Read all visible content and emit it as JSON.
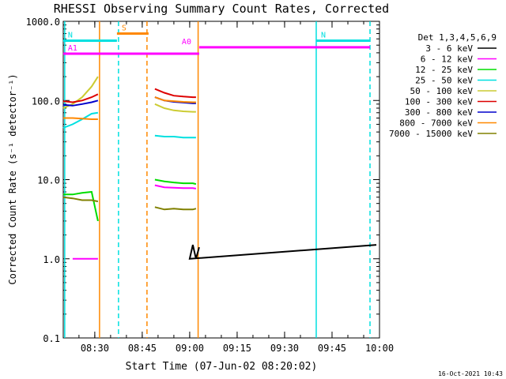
{
  "chart_data": {
    "type": "line",
    "title": "RHESSI Observing Summary Count Rates, Corrected",
    "xlabel": "Start Time (07-Jun-02 08:20:02)",
    "ylabel": "Corrected Count Rate (s⁻¹ detector⁻¹)",
    "yscale": "log",
    "ylim": [
      0.1,
      1000
    ],
    "xlim": [
      "08:20:02",
      "10:00:00"
    ],
    "x_tick_labels": [
      "08:30",
      "08:45",
      "09:00",
      "09:15",
      "09:30",
      "09:45",
      "10:00"
    ],
    "y_tick_labels": [
      "0.1",
      "1.0",
      "10.0",
      "100.0",
      "1000.0"
    ],
    "legend": {
      "title": "Det 1,3,4,5,6,9",
      "placement": "right"
    },
    "series": [
      {
        "name": "3 - 6 keV",
        "color": "#000000",
        "segments": [
          {
            "x": [
              "09:59",
              "09:00",
              "09:01",
              "09:02",
              "09:03"
            ],
            "y": [
              1.5,
              1.0,
              1.5,
              1.0,
              1.4
            ]
          }
        ]
      },
      {
        "name": "6 - 12 keV",
        "color": "#ff00ff",
        "segments": [
          {
            "x": [
              "08:23",
              "08:26",
              "08:29",
              "08:31"
            ],
            "y": [
              1.0,
              1.0,
              1.0,
              1.0
            ]
          },
          {
            "x": [
              "08:49",
              "08:52",
              "08:55",
              "08:58",
              "09:01",
              "09:02"
            ],
            "y": [
              8.5,
              8.0,
              7.9,
              7.8,
              7.8,
              7.7
            ]
          }
        ]
      },
      {
        "name": "12 - 25 keV",
        "color": "#00dd00",
        "segments": [
          {
            "x": [
              "08:20",
              "08:23",
              "08:26",
              "08:29",
              "08:31"
            ],
            "y": [
              6.5,
              6.5,
              6.8,
              7.0,
              3.0
            ]
          },
          {
            "x": [
              "08:49",
              "08:52",
              "08:55",
              "08:58",
              "09:01",
              "09:02"
            ],
            "y": [
              10.0,
              9.5,
              9.2,
              9.0,
              9.0,
              8.8
            ]
          }
        ]
      },
      {
        "name": "25 - 50 keV",
        "color": "#00e0e0",
        "segments": [
          {
            "x": [
              "08:20",
              "08:23",
              "08:26",
              "08:29",
              "08:31"
            ],
            "y": [
              45,
              50,
              58,
              68,
              70
            ]
          },
          {
            "x": [
              "08:49",
              "08:52",
              "08:55",
              "08:58",
              "09:01",
              "09:02"
            ],
            "y": [
              36,
              35,
              35,
              34,
              34,
              34
            ]
          }
        ]
      },
      {
        "name": "50 - 100 keV",
        "color": "#cccc33",
        "segments": [
          {
            "x": [
              "08:20",
              "08:23",
              "08:26",
              "08:29",
              "08:31"
            ],
            "y": [
              80,
              90,
              110,
              150,
              200
            ]
          },
          {
            "x": [
              "08:49",
              "08:52",
              "08:55",
              "08:58",
              "09:01",
              "09:02"
            ],
            "y": [
              90,
              80,
              75,
              73,
              72,
              72
            ]
          }
        ]
      },
      {
        "name": "100 - 300 keV",
        "color": "#dd0000",
        "segments": [
          {
            "x": [
              "08:20",
              "08:23",
              "08:26",
              "08:29",
              "08:31"
            ],
            "y": [
              98,
              95,
              100,
              110,
              120
            ]
          },
          {
            "x": [
              "08:49",
              "08:52",
              "08:55",
              "08:58",
              "09:01",
              "09:02"
            ],
            "y": [
              140,
              125,
              115,
              112,
              110,
              110
            ]
          }
        ]
      },
      {
        "name": "300 - 800 keV",
        "color": "#0000cc",
        "segments": [
          {
            "x": [
              "08:20",
              "08:23",
              "08:26",
              "08:29",
              "08:31"
            ],
            "y": [
              88,
              86,
              90,
              95,
              100
            ]
          },
          {
            "x": [
              "08:49",
              "08:52",
              "08:55",
              "08:58",
              "09:01",
              "09:02"
            ],
            "y": [
              110,
              100,
              96,
              94,
              92,
              92
            ]
          }
        ]
      },
      {
        "name": "800 - 7000 keV",
        "color": "#ff8800",
        "segments": [
          {
            "x": [
              "08:20",
              "08:23",
              "08:26",
              "08:29",
              "08:31"
            ],
            "y": [
              60,
              60,
              59,
              58,
              58
            ]
          },
          {
            "x": [
              "08:49",
              "08:52",
              "08:55",
              "08:58",
              "09:01",
              "09:02"
            ],
            "y": [
              110,
              100,
              98,
              96,
              95,
              95
            ]
          }
        ]
      },
      {
        "name": "7000 - 15000 keV",
        "color": "#808000",
        "segments": [
          {
            "x": [
              "08:20",
              "08:23",
              "08:26",
              "08:29",
              "08:31"
            ],
            "y": [
              6.0,
              5.8,
              5.5,
              5.5,
              5.3
            ]
          },
          {
            "x": [
              "08:49",
              "08:52",
              "08:55",
              "08:58",
              "09:01",
              "09:02"
            ],
            "y": [
              4.5,
              4.2,
              4.3,
              4.2,
              4.2,
              4.3
            ]
          }
        ]
      }
    ],
    "state_bars": [
      {
        "label": "S",
        "color": "#ff8800",
        "x": [
          "08:37",
          "08:47"
        ],
        "y_level": 700
      },
      {
        "label": "N",
        "color": "#00e0e0",
        "x": [
          "08:20",
          "08:37"
        ],
        "y_level": 570
      },
      {
        "label": "N",
        "color": "#00e0e0",
        "x": [
          "09:40",
          "09:57"
        ],
        "y_level": 570
      },
      {
        "label": "A0",
        "color": "#ff00ff",
        "x": [
          "09:03",
          "09:57"
        ],
        "y_level": 470
      },
      {
        "label": "A1",
        "color": "#ff00ff",
        "x": [
          "08:20",
          "09:03"
        ],
        "y_level": 390
      }
    ],
    "vertical_lines": [
      {
        "x": "08:20:30",
        "color": "#00e0e0",
        "style": "solid"
      },
      {
        "x": "08:31:30",
        "color": "#ff8800",
        "style": "solid"
      },
      {
        "x": "08:37:30",
        "color": "#00e0e0",
        "style": "dashed"
      },
      {
        "x": "08:46:30",
        "color": "#ff8800",
        "style": "dashed"
      },
      {
        "x": "09:02:40",
        "color": "#ff8800",
        "style": "solid"
      },
      {
        "x": "09:40:00",
        "color": "#00e0e0",
        "style": "solid"
      },
      {
        "x": "09:57:00",
        "color": "#00e0e0",
        "style": "dashed"
      }
    ],
    "footer_date": "16-Oct-2021 10:43"
  }
}
